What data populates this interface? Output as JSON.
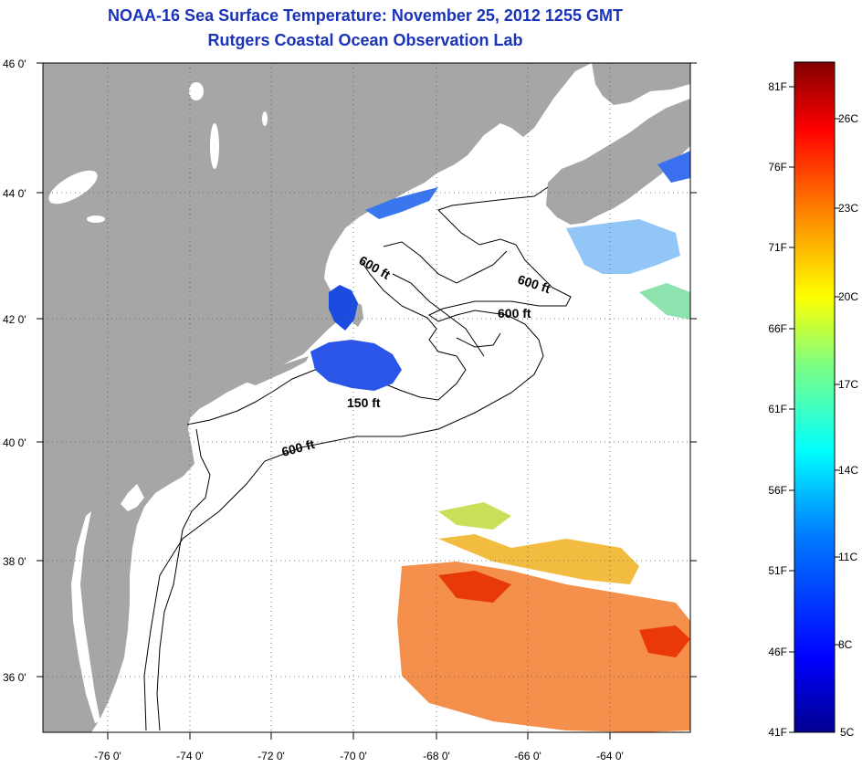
{
  "title": "NOAA-16 Sea Surface Temperature:  November 25, 2012 1255 GMT",
  "subtitle": "Rutgers Coastal Ocean Observation Lab",
  "lat_labels": [
    "46 0'",
    "44 0'",
    "42 0'",
    "40 0'",
    "38 0'",
    "36 0'"
  ],
  "lon_labels": [
    "-76 0'",
    "-74 0'",
    "-72 0'",
    "-70 0'",
    "-68 0'",
    "-66 0'",
    "-64 0'"
  ],
  "contour_labels": [
    "600 ft",
    "600 ft",
    "600 ft",
    "150 ft",
    "600 ft"
  ],
  "colorbar": {
    "f_labels": [
      "81F",
      "76F",
      "71F",
      "66F",
      "61F",
      "56F",
      "51F",
      "46F",
      "41F"
    ],
    "c_labels": [
      "26C",
      "23C",
      "20C",
      "17C",
      "14C",
      "11C",
      "8C",
      "5C"
    ]
  },
  "colors": {
    "land": "#a6a6a6",
    "title": "#1a33b8",
    "ramp": [
      "#00008f",
      "#0000ff",
      "#0080ff",
      "#00ffff",
      "#80ff80",
      "#ffff00",
      "#ff8000",
      "#ff0000",
      "#800000"
    ]
  }
}
